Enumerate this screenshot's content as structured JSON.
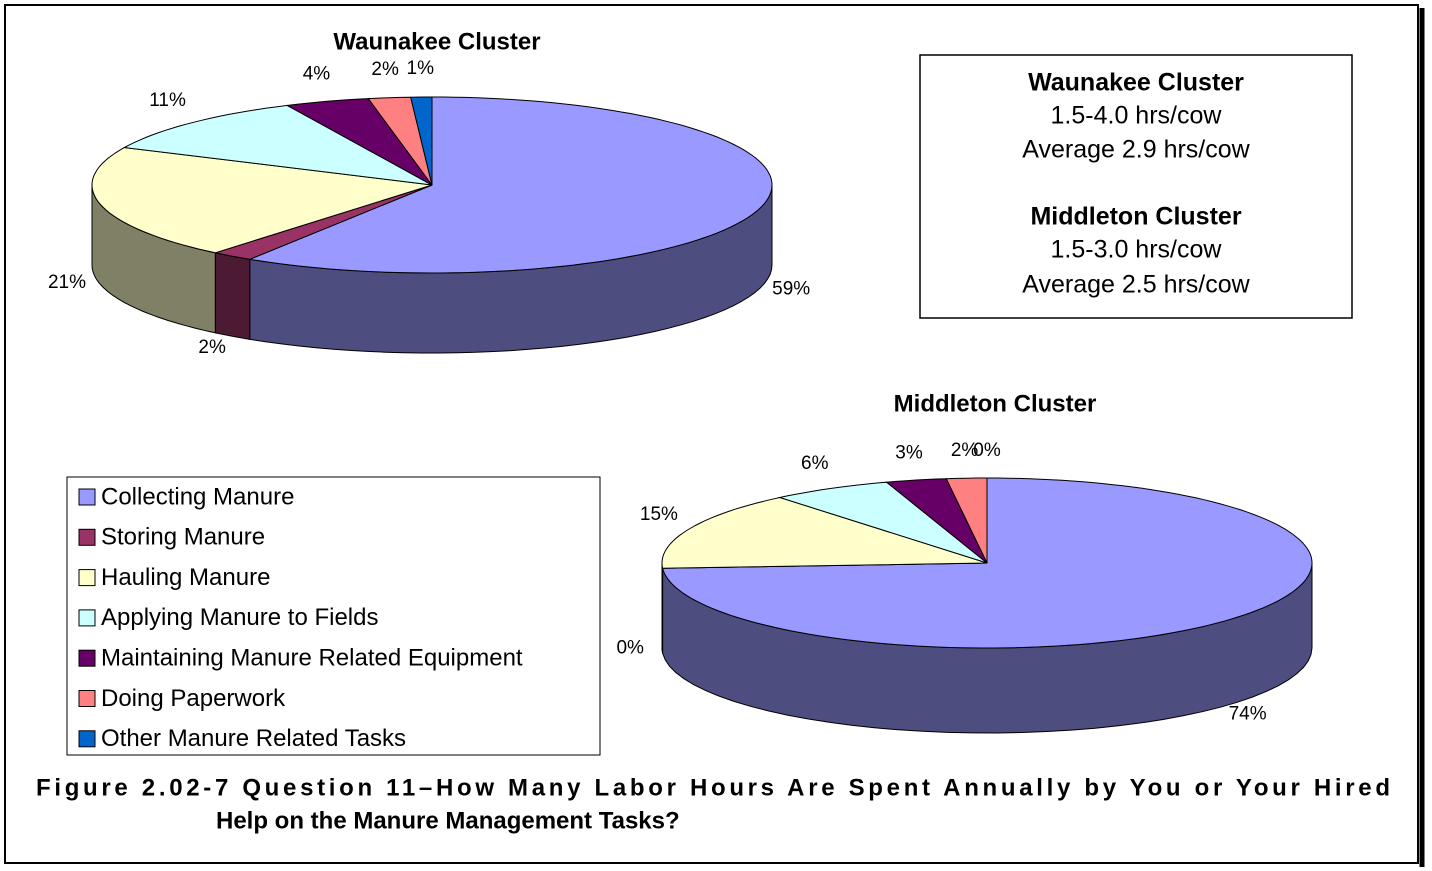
{
  "chart_data": [
    {
      "type": "pie",
      "title": "Waunakee Cluster",
      "categories": [
        "Collecting Manure",
        "Storing Manure",
        "Hauling Manure",
        "Applying Manure to Fields",
        "Maintaining Manure Related Equipment",
        "Doing Paperwork",
        "Other Manure Related Tasks"
      ],
      "colors": [
        "#9999ff",
        "#993366",
        "#ffffcc",
        "#ccffff",
        "#660066",
        "#ff8080",
        "#0066cc"
      ],
      "values": [
        59,
        2,
        21,
        11,
        4,
        2,
        1
      ],
      "value_labels": [
        "59%",
        "2%",
        "21%",
        "11%",
        "4%",
        "2%",
        "1%"
      ]
    },
    {
      "type": "pie",
      "title": "Middleton Cluster",
      "colors": [
        "#9999ff",
        "#993366",
        "#ffffcc",
        "#ccffff",
        "#660066",
        "#ff8080",
        "#0066cc"
      ],
      "values": [
        74,
        0,
        15,
        6,
        3,
        2,
        0
      ],
      "value_labels": [
        "74%",
        "0%",
        "15%",
        "6%",
        "3%",
        "2%",
        "0%"
      ]
    }
  ],
  "info_box": {
    "lines": [
      {
        "text": "Waunakee Cluster",
        "bold": true
      },
      {
        "text": "1.5-4.0 hrs/cow"
      },
      {
        "text": "Average 2.9 hrs/cow"
      },
      {
        "text": "Middleton Cluster",
        "bold": true
      },
      {
        "text": "1.5-3.0 hrs/cow"
      },
      {
        "text": "Average 2.5 hrs/cow"
      }
    ]
  },
  "caption": [
    "Figure 2.02-7   Question 11–How Many Labor Hours Are Spent Annually by You or Your Hired",
    "Help on the Manure Management Tasks?"
  ]
}
